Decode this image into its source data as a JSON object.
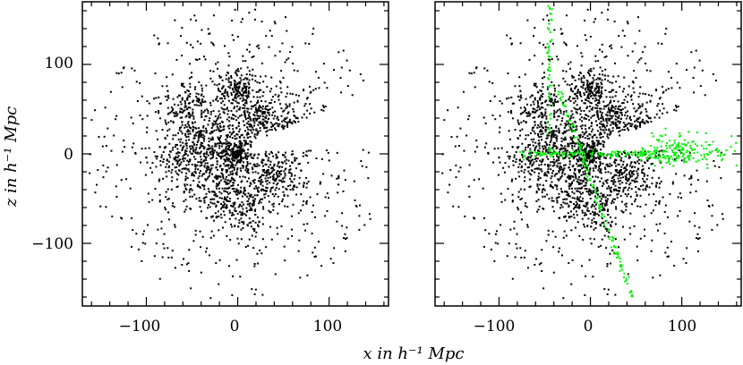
{
  "chart_data": [
    {
      "type": "scatter",
      "panel": "left",
      "xlabel": "x  in h⁻¹ Mpc",
      "ylabel": "z  in h⁻¹ Mpc",
      "xlim": [
        -170,
        165
      ],
      "ylim": [
        -170,
        170
      ],
      "xticks": [
        -100,
        0,
        100
      ],
      "yticks": [
        100,
        0,
        -100
      ],
      "xtick_labels": [
        "−100",
        "0",
        "100"
      ],
      "ytick_labels": [
        "100",
        "0",
        "−100"
      ],
      "grid": false,
      "series": [
        {
          "color": "#000000",
          "n_points": 2400,
          "distribution": "galaxy survey slice; dense core within |x|,|z| < 60, wedge-shaped gap toward +x near z = 5–35"
        }
      ]
    },
    {
      "type": "scatter",
      "panel": "right",
      "xlim": [
        -170,
        165
      ],
      "ylim": [
        -170,
        170
      ],
      "xticks": [
        -100,
        0,
        100
      ],
      "xtick_labels": [
        "−100",
        "0",
        "100"
      ],
      "grid": false,
      "series": [
        {
          "color": "#000000",
          "n_points": 2400,
          "distribution": "same field as left panel"
        },
        {
          "color": "#00ee00",
          "n_points": 520,
          "distribution": "overlay streaks: horizontal band at z ≈ 0 from x ≈ -80 to 160, cluster near x ≈ 90, steep diagonal line through origin from (-35, 75) to (45, -160), vertical line near x = -45 from z ≈ 0 to 170"
        }
      ]
    }
  ],
  "colors": {
    "points": "#000000",
    "overlay": "#00ee00",
    "frame": "#000000"
  }
}
